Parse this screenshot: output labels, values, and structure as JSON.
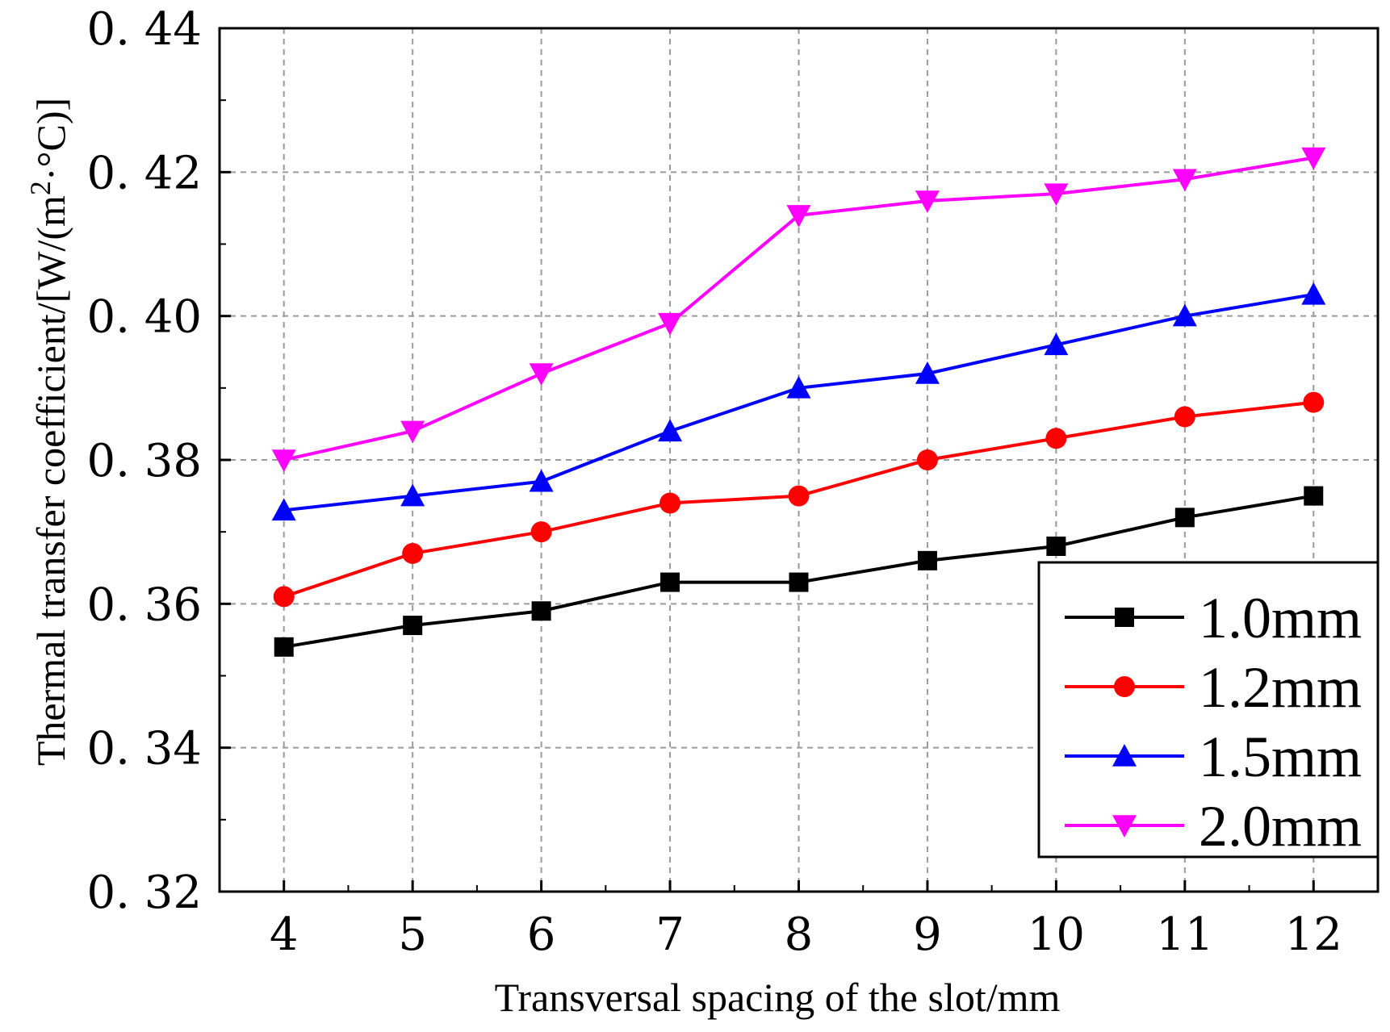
{
  "chart_data": {
    "type": "line",
    "title": "",
    "xlabel": "Transversal spacing of the slot/mm",
    "ylabel_main": "Thermal transfer coefficient/",
    "ylabel_bracket_open": "[W/(m",
    "ylabel_superscript": "2",
    "ylabel_bracket_close": "·°C)]",
    "x": [
      4,
      5,
      6,
      7,
      8,
      9,
      10,
      11,
      12
    ],
    "x_tick_labels": [
      "4",
      "5",
      "6",
      "7",
      "8",
      "9",
      "10",
      "11",
      "12"
    ],
    "xlim": [
      3.5,
      12.5
    ],
    "ylim": [
      0.32,
      0.44
    ],
    "y_ticks": [
      0.32,
      0.34,
      0.36,
      0.38,
      0.4,
      0.42,
      0.44
    ],
    "y_tick_labels": [
      "0. 32",
      "0. 34",
      "0. 36",
      "0. 38",
      "0. 40",
      "0. 42",
      "0. 44"
    ],
    "grid": true,
    "legend_position": "lower-right",
    "series": [
      {
        "name": "1.0mm",
        "color": "#000000",
        "marker": "square",
        "values": [
          0.354,
          0.357,
          0.359,
          0.363,
          0.363,
          0.366,
          0.368,
          0.372,
          0.375
        ]
      },
      {
        "name": "1.2mm",
        "color": "#ff0000",
        "marker": "circle",
        "values": [
          0.361,
          0.367,
          0.37,
          0.374,
          0.375,
          0.38,
          0.383,
          0.386,
          0.388
        ]
      },
      {
        "name": "1.5mm",
        "color": "#0000ff",
        "marker": "triangle-up",
        "values": [
          0.373,
          0.375,
          0.377,
          0.384,
          0.39,
          0.392,
          0.396,
          0.4,
          0.403
        ]
      },
      {
        "name": "2.0mm",
        "color": "#ff00ff",
        "marker": "triangle-down",
        "values": [
          0.38,
          0.384,
          0.392,
          0.399,
          0.414,
          0.416,
          0.417,
          0.419,
          0.422
        ]
      }
    ]
  }
}
